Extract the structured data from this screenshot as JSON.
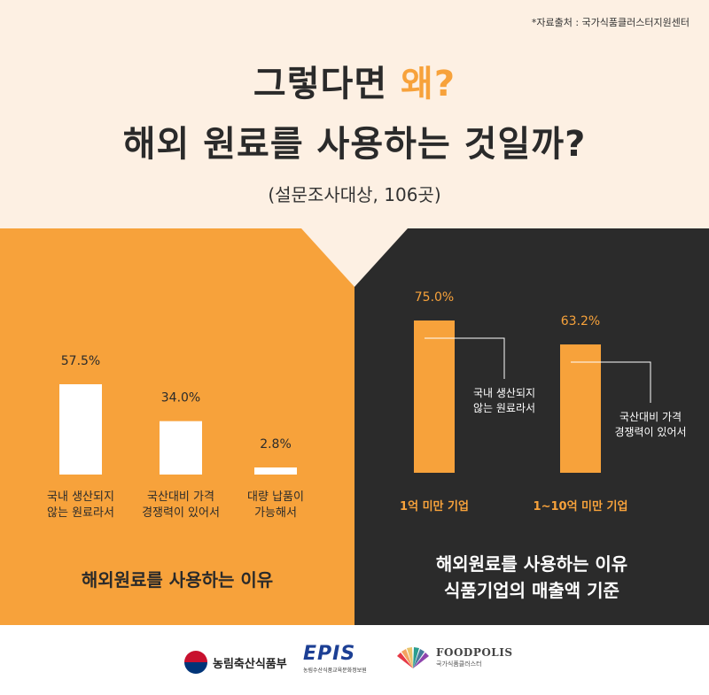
{
  "source_note": "*자료출처 : 국가식품클러스터지원센터",
  "headline": {
    "line1_prefix": "그렇다면 ",
    "line1_accent": "왜?",
    "line2": "해외 원료를 사용하는 것일까?"
  },
  "survey_note": "(설문조사대상, 106곳)",
  "colors": {
    "background_top": "#fdf0e3",
    "orange": "#f7a23b",
    "dark": "#2b2b2b",
    "white": "#ffffff"
  },
  "chart_data": [
    {
      "type": "bar",
      "title": "해외원료를 사용하는 이유",
      "categories": [
        "국내 생산되지\n않는 원료라서",
        "국산대비 가격\n경쟁력이 있어서",
        "대량 납품이\n가능해서"
      ],
      "values": [
        57.5,
        34.0,
        2.8
      ],
      "value_labels": [
        "57.5%",
        "34.0%",
        "2.8%"
      ],
      "unit": "%",
      "ylim": [
        0,
        60
      ],
      "grid": false
    },
    {
      "type": "bar",
      "title": "해외원료를 사용하는 이유\n식품기업의 매출액 기준",
      "categories": [
        "1억 미만 기업",
        "1~10억 미만 기업"
      ],
      "values": [
        75.0,
        63.2
      ],
      "value_labels": [
        "75.0%",
        "63.2%"
      ],
      "annotations": [
        "국내 생산되지\n않는 원료라서",
        "국산대비 가격\n경쟁력이 있어서"
      ],
      "unit": "%",
      "ylim": [
        0,
        80
      ],
      "grid": false
    }
  ],
  "footer": {
    "ministry": "농림축산식품부",
    "epis": "EPIS",
    "epis_sub": "농림수산식품교육문화정보원",
    "foodpolis": "FOODPOLIS",
    "foodpolis_sub": "국가식품클러스터"
  }
}
